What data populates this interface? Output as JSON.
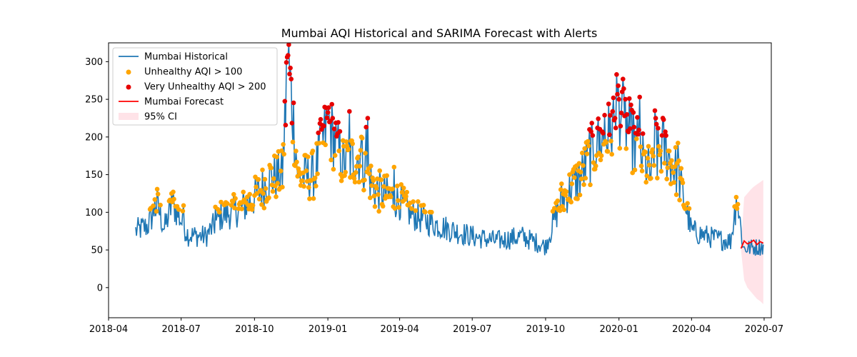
{
  "chart_data": {
    "type": "line",
    "title": "Mumbai AQI Historical and SARIMA Forecast with Alerts",
    "xlabel": "",
    "ylabel": "",
    "xlim": [
      "2018-04-01",
      "2020-07-10"
    ],
    "ylim": [
      -40,
      325
    ],
    "x_ticks": [
      "2018-04",
      "2018-07",
      "2018-10",
      "2019-01",
      "2019-04",
      "2019-07",
      "2019-10",
      "2020-01",
      "2020-04",
      "2020-07"
    ],
    "y_ticks": [
      0,
      50,
      100,
      150,
      200,
      250,
      300
    ],
    "grid": false,
    "legend_position": "top-left",
    "colors": {
      "historical": "#1f77b4",
      "unhealthy": "#ffa500",
      "very_unhealthy": "#e60000",
      "forecast": "#ff0000",
      "ci": "#ffc0cb"
    },
    "legend": [
      {
        "label": "Mumbai Historical",
        "kind": "line",
        "color": "#1f77b4"
      },
      {
        "label": "Unhealthy AQI > 100",
        "kind": "dot",
        "color": "#ffa500"
      },
      {
        "label": "Very Unhealthy AQI > 200",
        "kind": "dot",
        "color": "#e60000"
      },
      {
        "label": "Mumbai Forecast",
        "kind": "line",
        "color": "#ff0000"
      },
      {
        "label": "95% CI",
        "kind": "patch",
        "color": "#ffc0cb"
      }
    ],
    "thresholds": {
      "unhealthy": 100,
      "very_unhealthy": 200
    },
    "historical": {
      "name": "Mumbai Historical",
      "anchors": [
        [
          "2018-05-05",
          75
        ],
        [
          "2018-05-20",
          82
        ],
        [
          "2018-06-01",
          110
        ],
        [
          "2018-06-10",
          78
        ],
        [
          "2018-06-20",
          112
        ],
        [
          "2018-07-10",
          70
        ],
        [
          "2018-08-01",
          68
        ],
        [
          "2018-08-20",
          95
        ],
        [
          "2018-09-15",
          105
        ],
        [
          "2018-10-01",
          120
        ],
        [
          "2018-10-20",
          145
        ],
        [
          "2018-11-05",
          150
        ],
        [
          "2018-11-12",
          305
        ],
        [
          "2018-11-25",
          145
        ],
        [
          "2018-12-15",
          150
        ],
        [
          "2019-01-01",
          220
        ],
        [
          "2019-01-20",
          165
        ],
        [
          "2019-02-10",
          175
        ],
        [
          "2019-03-01",
          130
        ],
        [
          "2019-04-01",
          115
        ],
        [
          "2019-04-15",
          98
        ],
        [
          "2019-05-01",
          90
        ],
        [
          "2019-06-01",
          78
        ],
        [
          "2019-07-01",
          68
        ],
        [
          "2019-08-01",
          62
        ],
        [
          "2019-09-01",
          68
        ],
        [
          "2019-10-01",
          55
        ],
        [
          "2019-10-20",
          115
        ],
        [
          "2019-11-15",
          150
        ],
        [
          "2019-12-01",
          185
        ],
        [
          "2019-12-20",
          205
        ],
        [
          "2020-01-01",
          240
        ],
        [
          "2020-01-20",
          190
        ],
        [
          "2020-02-10",
          150
        ],
        [
          "2020-02-25",
          190
        ],
        [
          "2020-03-15",
          150
        ],
        [
          "2020-04-01",
          75
        ],
        [
          "2020-05-01",
          65
        ],
        [
          "2020-05-20",
          62
        ],
        [
          "2020-05-28",
          120
        ],
        [
          "2020-06-05",
          52
        ],
        [
          "2020-06-30",
          55
        ]
      ],
      "peaks": [
        [
          "2018-05-29",
          117
        ],
        [
          "2018-06-19",
          125
        ],
        [
          "2018-07-04",
          109
        ],
        [
          "2018-08-13",
          107
        ],
        [
          "2018-11-10",
          299
        ],
        [
          "2018-11-11",
          306
        ],
        [
          "2018-12-22",
          218
        ],
        [
          "2018-12-24",
          210
        ],
        [
          "2019-01-02",
          239
        ],
        [
          "2019-01-04",
          221
        ],
        [
          "2019-01-12",
          201
        ],
        [
          "2019-01-28",
          234
        ],
        [
          "2019-02-12",
          200
        ],
        [
          "2019-02-18",
          213
        ],
        [
          "2019-02-20",
          225
        ],
        [
          "2019-03-25",
          160
        ],
        [
          "2019-11-25",
          210
        ],
        [
          "2019-12-05",
          212
        ],
        [
          "2019-12-14",
          229
        ],
        [
          "2019-12-20",
          203
        ],
        [
          "2019-12-27",
          225
        ],
        [
          "2019-12-28",
          212
        ],
        [
          "2019-12-29",
          283
        ],
        [
          "2019-12-31",
          268
        ],
        [
          "2020-01-01",
          250
        ],
        [
          "2020-01-05",
          260
        ],
        [
          "2020-01-08",
          228
        ],
        [
          "2020-01-15",
          211
        ],
        [
          "2020-01-20",
          213
        ],
        [
          "2020-01-22",
          205
        ],
        [
          "2020-01-24",
          226
        ],
        [
          "2020-01-27",
          253
        ],
        [
          "2020-02-15",
          235
        ],
        [
          "2020-02-16",
          225
        ],
        [
          "2020-02-17",
          217
        ],
        [
          "2020-03-15",
          192
        ],
        [
          "2020-05-27",
          120
        ]
      ]
    },
    "forecast": {
      "name": "Mumbai Forecast",
      "x": [
        "2020-06-02",
        "2020-06-06",
        "2020-06-10",
        "2020-06-14",
        "2020-06-18",
        "2020-06-22",
        "2020-06-26",
        "2020-06-30"
      ],
      "y": [
        52,
        62,
        58,
        60,
        63,
        57,
        61,
        59
      ],
      "ci_lower": [
        50,
        10,
        0,
        -5,
        -10,
        -15,
        -18,
        -22
      ],
      "ci_upper": [
        55,
        120,
        125,
        130,
        134,
        137,
        140,
        143
      ]
    }
  }
}
